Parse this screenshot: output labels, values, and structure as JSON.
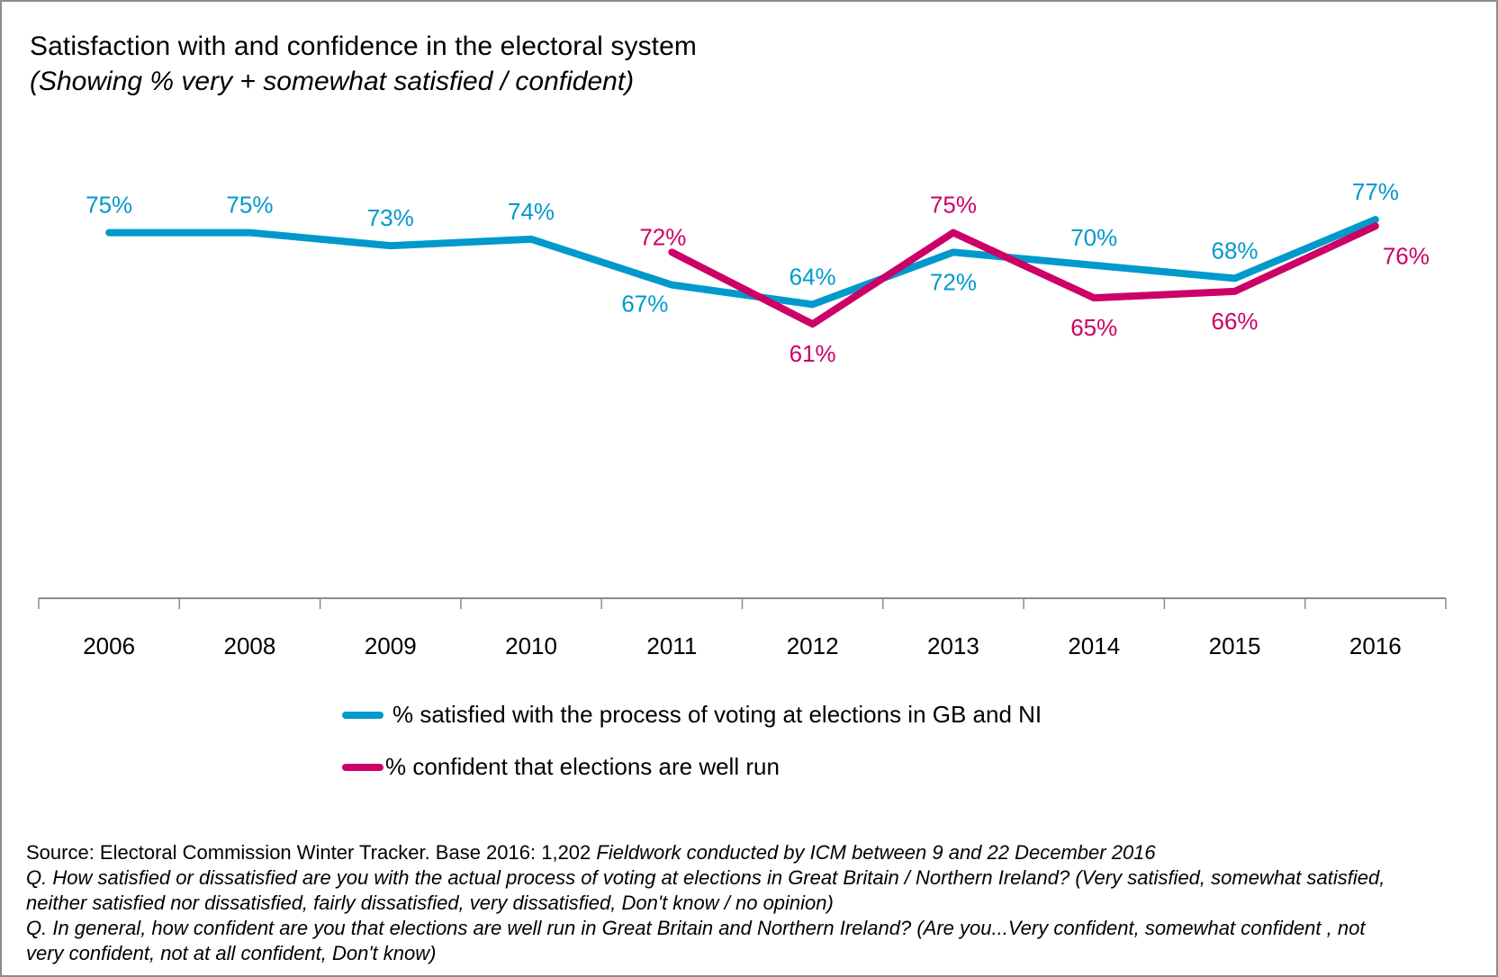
{
  "header": {
    "title": "Satisfaction  with and confidence  in the electoral  system",
    "subtitle": "(Showing % very + somewhat satisfied / confident)"
  },
  "colors": {
    "satisfied": "#0099CC",
    "confident": "#CC0066",
    "axis": "#8c8c8c"
  },
  "chart_data": {
    "type": "line",
    "title": "Satisfaction with and confidence in the electoral system",
    "subtitle": "(Showing % very + somewhat satisfied / confident)",
    "xlabel": "",
    "ylabel": "",
    "categories": [
      "2006",
      "2008",
      "2009",
      "2010",
      "2011",
      "2012",
      "2013",
      "2014",
      "2015",
      "2016"
    ],
    "ylim": [
      19,
      85
    ],
    "grid": false,
    "legend_position": "bottom-center",
    "series": [
      {
        "name": "% satisfied with the process of voting at elections in GB and NI",
        "color": "#0099CC",
        "values": [
          75,
          75,
          73,
          74,
          67,
          64,
          72,
          70,
          68,
          77
        ],
        "labels": [
          "75%",
          "75%",
          "73%",
          "74%",
          "67%",
          "64%",
          "72%",
          "70%",
          "68%",
          "77%"
        ],
        "label_placement": [
          "above",
          "above",
          "above",
          "above",
          "below-left",
          "above",
          "below",
          "above",
          "above",
          "above"
        ]
      },
      {
        "name": "%  confident that elections are well run",
        "color": "#CC0066",
        "values": [
          null,
          null,
          null,
          null,
          72,
          61,
          75,
          65,
          66,
          76
        ],
        "labels": [
          null,
          null,
          null,
          null,
          "72%",
          "61%",
          "75%",
          "65%",
          "66%",
          "76%"
        ],
        "label_placement": [
          null,
          null,
          null,
          null,
          "above-left",
          "below",
          "above",
          "below",
          "below",
          "below-right"
        ]
      }
    ]
  },
  "legend": {
    "items": [
      {
        "label": "% satisfied with the process of voting at elections in GB and NI",
        "color": "#0099CC"
      },
      {
        "label": "%  confident that elections are well run",
        "color": "#CC0066"
      }
    ]
  },
  "footer": {
    "source_plain": "Source: Electoral Commission Winter Tracker.   Base 2016: 1,202  ",
    "source_italic": "Fieldwork conducted  by ICM between 9 and 22 December 2016",
    "q1_line1": "Q. How satisfied or dissatisfied are you with the actual process of voting at elections in Great Britain / Northern Ireland?  (Very satisfied, somewhat satisfied,",
    "q1_line2": "neither satisfied nor dissatisfied, fairly dissatisfied, very dissatisfied, Don't know / no opinion)",
    "q2_line1": "Q. In general, how confident are you that elections are well run in Great Britain and Northern Ireland? (Are you...Very confident,  somewhat confident , not",
    "q2_line2": "very confident, not at all confident, Don't know)"
  }
}
